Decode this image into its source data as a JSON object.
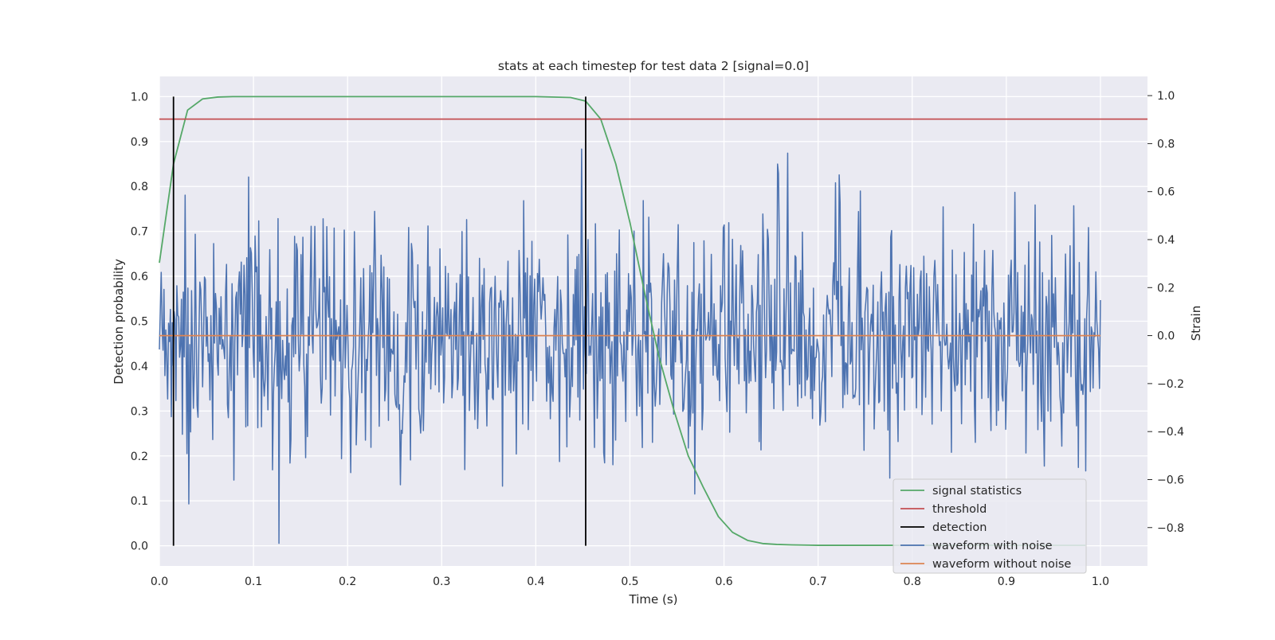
{
  "chart_data": {
    "type": "line",
    "title": "stats at each timestep for test data 2 [signal=0.0]",
    "xlabel": "Time (s)",
    "ylabel": "Detection probability",
    "y2label": "Strain",
    "xlim": [
      0.0,
      1.05
    ],
    "ylim": [
      -0.045,
      1.045
    ],
    "y2lim": [
      -0.96,
      1.08
    ],
    "xticks": [
      0.0,
      0.1,
      0.2,
      0.3,
      0.4,
      0.5,
      0.6,
      0.7,
      0.8,
      0.9,
      1.0
    ],
    "xtick_labels": [
      "0.0",
      "0.1",
      "0.2",
      "0.3",
      "0.4",
      "0.5",
      "0.6",
      "0.7",
      "0.8",
      "0.9",
      "1.0"
    ],
    "yticks": [
      0.0,
      0.1,
      0.2,
      0.3,
      0.4,
      0.5,
      0.6,
      0.7,
      0.8,
      0.9,
      1.0
    ],
    "ytick_labels": [
      "0.0",
      "0.1",
      "0.2",
      "0.3",
      "0.4",
      "0.5",
      "0.6",
      "0.7",
      "0.8",
      "0.9",
      "1.0"
    ],
    "y2ticks": [
      -0.8,
      -0.6,
      -0.4,
      -0.2,
      0.0,
      0.2,
      0.4,
      0.6,
      0.8,
      1.0
    ],
    "y2tick_labels": [
      "−0.8",
      "−0.6",
      "−0.4",
      "−0.2",
      "0.0",
      "0.2",
      "0.4",
      "0.6",
      "0.8",
      "1.0"
    ],
    "grid": true,
    "legend_position": "lower-right",
    "colors": {
      "background": "#eaeaf2",
      "grid": "#ffffff",
      "signal_statistics": "#55a868",
      "threshold": "#c44e52",
      "detection": "#000000",
      "waveform_with_noise": "#4c72b0",
      "waveform_without_noise": "#dd8452"
    },
    "series": [
      {
        "name": "signal statistics",
        "axis": "left",
        "x": [
          0.0,
          0.015,
          0.03,
          0.046,
          0.062,
          0.078,
          0.1,
          0.2,
          0.3,
          0.4,
          0.437,
          0.453,
          0.469,
          0.485,
          0.5,
          0.516,
          0.531,
          0.547,
          0.562,
          0.578,
          0.594,
          0.609,
          0.625,
          0.641,
          0.656,
          0.672,
          0.7,
          0.8,
          0.9,
          0.984
        ],
        "values": [
          0.63,
          0.85,
          0.97,
          0.995,
          0.999,
          1.0,
          1.0,
          1.0,
          1.0,
          1.0,
          0.998,
          0.99,
          0.95,
          0.85,
          0.72,
          0.56,
          0.42,
          0.3,
          0.2,
          0.13,
          0.065,
          0.03,
          0.012,
          0.005,
          0.003,
          0.002,
          0.001,
          0.001,
          0.001,
          0.001
        ]
      },
      {
        "name": "threshold",
        "axis": "left",
        "x": [
          0.0,
          1.05
        ],
        "values": [
          0.95,
          0.95
        ]
      },
      {
        "name": "detection",
        "axis": "left",
        "x": [
          0.015,
          0.453
        ],
        "y_range": [
          0.0,
          1.0
        ]
      },
      {
        "name": "waveform with noise",
        "axis": "right",
        "generated": true,
        "seed": 2,
        "samples": 1024,
        "mean": 0.0,
        "std": 0.24,
        "min": -0.87,
        "max": 0.99
      },
      {
        "name": "waveform without noise",
        "axis": "right",
        "x": [
          0.0,
          1.0
        ],
        "values": [
          0.0,
          0.0
        ]
      }
    ],
    "legend": [
      "signal statistics",
      "threshold",
      "detection",
      "waveform with noise",
      "waveform without noise"
    ]
  }
}
